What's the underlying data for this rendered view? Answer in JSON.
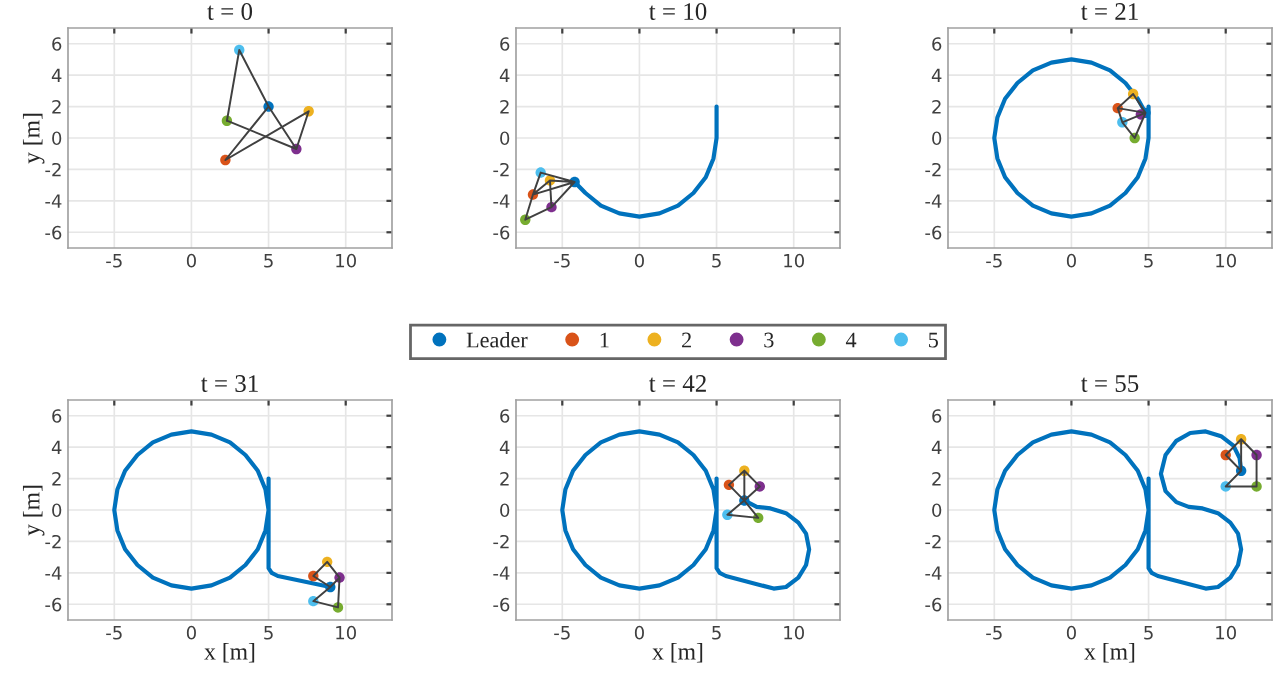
{
  "chart_data": [
    {
      "type": "scatter",
      "title": "t = 0",
      "ylabel": "y [m]",
      "xlim": [
        -8,
        13
      ],
      "ylim": [
        -7,
        7
      ],
      "xticks": [
        -5,
        0,
        5,
        10
      ],
      "yticks": [
        -6,
        -4,
        -2,
        0,
        2,
        4,
        6
      ],
      "grid": true,
      "marker": "circle",
      "series": [
        {
          "type": "line",
          "marker": "none",
          "color": "#404040",
          "x": [
            2.3,
            3.1,
            5,
            6.8,
            7.6,
            2.2,
            5
          ],
          "values": [
            1.1,
            5.6,
            2,
            -0.7,
            1.7,
            -1.4,
            2
          ]
        },
        {
          "type": "line",
          "marker": "none",
          "color": "#404040",
          "x": [
            2.3,
            6.8
          ],
          "values": [
            1.1,
            -0.7
          ]
        },
        {
          "color": "#0072bd",
          "x": [
            5
          ],
          "values": [
            2
          ]
        },
        {
          "color": "#d95319",
          "x": [
            2.2
          ],
          "values": [
            -1.4
          ]
        },
        {
          "color": "#edb120",
          "x": [
            7.6
          ],
          "values": [
            1.7
          ]
        },
        {
          "color": "#7e2f8e",
          "x": [
            6.8
          ],
          "values": [
            -0.7
          ]
        },
        {
          "color": "#77ac30",
          "x": [
            2.3
          ],
          "values": [
            1.1
          ]
        },
        {
          "color": "#4dbeee",
          "x": [
            3.1
          ],
          "values": [
            5.6
          ]
        }
      ]
    },
    {
      "type": "scatter",
      "title": "t = 10",
      "xlim": [
        -8,
        13
      ],
      "ylim": [
        -7,
        7
      ],
      "xticks": [
        -5,
        0,
        5,
        10
      ],
      "yticks": [
        -6,
        -4,
        -2,
        0,
        2,
        4,
        6
      ],
      "grid": true,
      "marker": "circle",
      "legend": "bottom",
      "series": [
        {
          "type": "line",
          "marker": "none",
          "color": "#0072bd",
          "x": [
            5,
            5,
            4.8,
            4.3,
            3.5,
            2.5,
            1.3,
            0,
            -1.3,
            -2.5,
            -3.5,
            -4.2
          ],
          "values": [
            2,
            0,
            -1.3,
            -2.5,
            -3.5,
            -4.3,
            -4.8,
            -5,
            -4.8,
            -4.3,
            -3.5,
            -2.8
          ]
        },
        {
          "type": "line",
          "marker": "none",
          "color": "#404040",
          "x": [
            -5.8,
            -4.2,
            -6.4,
            -6.9,
            -7.4,
            -5.7,
            -4.2,
            -6.9,
            -5.8,
            -5.7
          ],
          "values": [
            -2.7,
            -2.8,
            -2.2,
            -3.6,
            -5.2,
            -4.4,
            -2.8,
            -3.6,
            -2.7,
            -4.4
          ]
        },
        {
          "name": "Leader",
          "color": "#0072bd",
          "x": [
            -4.2
          ],
          "values": [
            -2.8
          ]
        },
        {
          "name": "1",
          "color": "#d95319",
          "x": [
            -6.9
          ],
          "values": [
            -3.6
          ]
        },
        {
          "name": "2",
          "color": "#edb120",
          "x": [
            -5.8
          ],
          "values": [
            -2.7
          ]
        },
        {
          "name": "3",
          "color": "#7e2f8e",
          "x": [
            -5.7
          ],
          "values": [
            -4.4
          ]
        },
        {
          "name": "4",
          "color": "#77ac30",
          "x": [
            -7.4
          ],
          "values": [
            -5.2
          ]
        },
        {
          "name": "5",
          "color": "#4dbeee",
          "x": [
            -6.4
          ],
          "values": [
            -2.2
          ]
        }
      ]
    },
    {
      "type": "scatter",
      "title": "t = 21",
      "xlim": [
        -8,
        13
      ],
      "ylim": [
        -7,
        7
      ],
      "xticks": [
        -5,
        0,
        5,
        10
      ],
      "yticks": [
        -6,
        -4,
        -2,
        0,
        2,
        4,
        6
      ],
      "grid": true,
      "marker": "circle",
      "series": [
        {
          "type": "line",
          "marker": "none",
          "color": "#0072bd",
          "x": [
            5,
            5,
            4.8,
            4.3,
            3.5,
            2.5,
            1.3,
            0,
            -1.3,
            -2.5,
            -3.5,
            -4.3,
            -4.8,
            -5,
            -4.8,
            -4.3,
            -3.5,
            -2.5,
            -1.3,
            0,
            1.3,
            2.5,
            3.5,
            4.3,
            4.8
          ],
          "values": [
            2,
            0,
            -1.3,
            -2.5,
            -3.5,
            -4.3,
            -4.8,
            -5,
            -4.8,
            -4.3,
            -3.5,
            -2.5,
            -1.3,
            0,
            1.3,
            2.5,
            3.5,
            4.3,
            4.8,
            5,
            4.8,
            4.3,
            3.5,
            2.5,
            1.6
          ]
        },
        {
          "type": "line",
          "marker": "none",
          "color": "#404040",
          "x": [
            3.0,
            4.0,
            4.8,
            3.0,
            3.3,
            4.8,
            4.1,
            3.3
          ],
          "values": [
            1.9,
            2.8,
            1.6,
            1.9,
            1.0,
            1.6,
            0,
            1.0
          ]
        },
        {
          "color": "#0072bd",
          "x": [
            4.8
          ],
          "values": [
            1.6
          ]
        },
        {
          "color": "#d95319",
          "x": [
            3.0
          ],
          "values": [
            1.9
          ]
        },
        {
          "color": "#edb120",
          "x": [
            4.0
          ],
          "values": [
            2.8
          ]
        },
        {
          "color": "#7e2f8e",
          "x": [
            4.5
          ],
          "values": [
            1.5
          ]
        },
        {
          "color": "#77ac30",
          "x": [
            4.1
          ],
          "values": [
            0
          ]
        },
        {
          "color": "#4dbeee",
          "x": [
            3.3
          ],
          "values": [
            1.0
          ]
        }
      ]
    },
    {
      "type": "scatter",
      "title": "t = 31",
      "xlabel": "x [m]",
      "ylabel": "y [m]",
      "xlim": [
        -8,
        13
      ],
      "ylim": [
        -7,
        7
      ],
      "xticks": [
        -5,
        0,
        5,
        10
      ],
      "yticks": [
        -6,
        -4,
        -2,
        0,
        2,
        4,
        6
      ],
      "grid": true,
      "marker": "circle",
      "series": [
        {
          "type": "line",
          "marker": "none",
          "color": "#0072bd",
          "x": [
            5,
            5,
            4.8,
            4.3,
            3.5,
            2.5,
            1.3,
            0,
            -1.3,
            -2.5,
            -3.5,
            -4.3,
            -4.8,
            -5,
            -4.8,
            -4.3,
            -3.5,
            -2.5,
            -1.3,
            0,
            1.3,
            2.5,
            3.5,
            4.3,
            4.8,
            5,
            5,
            5.2,
            5.6,
            9
          ],
          "values": [
            2,
            0,
            -1.3,
            -2.5,
            -3.5,
            -4.3,
            -4.8,
            -5,
            -4.8,
            -4.3,
            -3.5,
            -2.5,
            -1.3,
            0,
            1.3,
            2.5,
            3.5,
            4.3,
            4.8,
            5,
            4.8,
            4.3,
            3.5,
            2.5,
            1.3,
            0,
            -3.7,
            -4.0,
            -4.2,
            -4.9
          ]
        },
        {
          "type": "line",
          "marker": "none",
          "color": "#404040",
          "x": [
            9,
            7.9,
            8.8,
            9.6,
            9,
            7.9,
            9.5,
            9.6
          ],
          "values": [
            -4.9,
            -4.2,
            -3.3,
            -4.3,
            -4.9,
            -5.8,
            -6.2,
            -4.3
          ]
        },
        {
          "color": "#0072bd",
          "x": [
            9
          ],
          "values": [
            -4.9
          ]
        },
        {
          "color": "#d95319",
          "x": [
            7.9
          ],
          "values": [
            -4.2
          ]
        },
        {
          "color": "#edb120",
          "x": [
            8.8
          ],
          "values": [
            -3.3
          ]
        },
        {
          "color": "#7e2f8e",
          "x": [
            9.6
          ],
          "values": [
            -4.3
          ]
        },
        {
          "color": "#77ac30",
          "x": [
            9.5
          ],
          "values": [
            -6.2
          ]
        },
        {
          "color": "#4dbeee",
          "x": [
            7.9
          ],
          "values": [
            -5.8
          ]
        }
      ]
    },
    {
      "type": "scatter",
      "title": "t = 42",
      "xlabel": "x [m]",
      "xlim": [
        -8,
        13
      ],
      "ylim": [
        -7,
        7
      ],
      "xticks": [
        -5,
        0,
        5,
        10
      ],
      "yticks": [
        -6,
        -4,
        -2,
        0,
        2,
        4,
        6
      ],
      "grid": true,
      "marker": "circle",
      "series": [
        {
          "type": "line",
          "marker": "none",
          "color": "#0072bd",
          "x": [
            5,
            5,
            4.8,
            4.3,
            3.5,
            2.5,
            1.3,
            0,
            -1.3,
            -2.5,
            -3.5,
            -4.3,
            -4.8,
            -5,
            -4.8,
            -4.3,
            -3.5,
            -2.5,
            -1.3,
            0,
            1.3,
            2.5,
            3.5,
            4.3,
            4.8,
            5,
            5,
            5.2,
            5.6,
            8.7,
            9.5,
            10.3,
            10.8,
            11,
            10.8,
            10.3,
            9.5,
            8.5,
            7.6,
            7.2,
            6.8
          ],
          "values": [
            2,
            0,
            -1.3,
            -2.5,
            -3.5,
            -4.3,
            -4.8,
            -5,
            -4.8,
            -4.3,
            -3.5,
            -2.5,
            -1.3,
            0,
            1.3,
            2.5,
            3.5,
            4.3,
            4.8,
            5,
            4.8,
            4.3,
            3.5,
            2.5,
            1.3,
            0,
            -3.7,
            -4.0,
            -4.2,
            -5.0,
            -4.9,
            -4.3,
            -3.5,
            -2.5,
            -1.5,
            -0.8,
            -0.2,
            0.1,
            0.2,
            0.4,
            0.6
          ]
        },
        {
          "type": "line",
          "marker": "none",
          "color": "#404040",
          "x": [
            6.8,
            5.8,
            6.8,
            5.7,
            7.7,
            6.8,
            7.8,
            6.8,
            6.8
          ],
          "values": [
            2.5,
            1.6,
            0.6,
            -0.3,
            -0.5,
            0.6,
            1.5,
            2.5,
            0.6
          ]
        },
        {
          "color": "#0072bd",
          "x": [
            6.8
          ],
          "values": [
            0.6
          ]
        },
        {
          "color": "#d95319",
          "x": [
            5.8
          ],
          "values": [
            1.6
          ]
        },
        {
          "color": "#edb120",
          "x": [
            6.8
          ],
          "values": [
            2.5
          ]
        },
        {
          "color": "#7e2f8e",
          "x": [
            7.8
          ],
          "values": [
            1.5
          ]
        },
        {
          "color": "#77ac30",
          "x": [
            7.7
          ],
          "values": [
            -0.5
          ]
        },
        {
          "color": "#4dbeee",
          "x": [
            5.7
          ],
          "values": [
            -0.3
          ]
        }
      ]
    },
    {
      "type": "scatter",
      "title": "t = 55",
      "xlabel": "x [m]",
      "xlim": [
        -8,
        13
      ],
      "ylim": [
        -7,
        7
      ],
      "xticks": [
        -5,
        0,
        5,
        10
      ],
      "yticks": [
        -6,
        -4,
        -2,
        0,
        2,
        4,
        6
      ],
      "grid": true,
      "marker": "circle",
      "series": [
        {
          "type": "line",
          "marker": "none",
          "color": "#0072bd",
          "x": [
            5,
            5,
            4.8,
            4.3,
            3.5,
            2.5,
            1.3,
            0,
            -1.3,
            -2.5,
            -3.5,
            -4.3,
            -4.8,
            -5,
            -4.8,
            -4.3,
            -3.5,
            -2.5,
            -1.3,
            0,
            1.3,
            2.5,
            3.5,
            4.3,
            4.8,
            5,
            5,
            5.2,
            5.6,
            8.7,
            9.5,
            10.3,
            10.8,
            11,
            10.8,
            10.3,
            9.5,
            8.5,
            7.6,
            6.8,
            6.1,
            5.8,
            6.1,
            6.8,
            7.7,
            8.7,
            9.7,
            10.5,
            10.9,
            11
          ],
          "values": [
            2,
            0,
            -1.3,
            -2.5,
            -3.5,
            -4.3,
            -4.8,
            -5,
            -4.8,
            -4.3,
            -3.5,
            -2.5,
            -1.3,
            0,
            1.3,
            2.5,
            3.5,
            4.3,
            4.8,
            5,
            4.8,
            4.3,
            3.5,
            2.5,
            1.3,
            0,
            -3.7,
            -4.0,
            -4.2,
            -5.0,
            -4.9,
            -4.3,
            -3.5,
            -2.5,
            -1.5,
            -0.8,
            -0.2,
            0.1,
            0.2,
            0.5,
            1.2,
            2.3,
            3.5,
            4.4,
            4.9,
            5.0,
            4.7,
            4.1,
            3.3,
            2.5
          ]
        },
        {
          "type": "line",
          "marker": "none",
          "color": "#404040",
          "x": [
            11,
            10,
            11,
            12,
            12,
            10,
            11,
            11
          ],
          "values": [
            2.5,
            3.5,
            4.5,
            3.5,
            1.5,
            1.5,
            2.5,
            4.5
          ]
        },
        {
          "color": "#0072bd",
          "x": [
            11
          ],
          "values": [
            2.5
          ]
        },
        {
          "color": "#d95319",
          "x": [
            10
          ],
          "values": [
            3.5
          ]
        },
        {
          "color": "#edb120",
          "x": [
            11
          ],
          "values": [
            4.5
          ]
        },
        {
          "color": "#7e2f8e",
          "x": [
            12
          ],
          "values": [
            3.5
          ]
        },
        {
          "color": "#77ac30",
          "x": [
            12
          ],
          "values": [
            1.5
          ]
        },
        {
          "color": "#4dbeee",
          "x": [
            10
          ],
          "values": [
            1.5
          ]
        }
      ]
    }
  ]
}
